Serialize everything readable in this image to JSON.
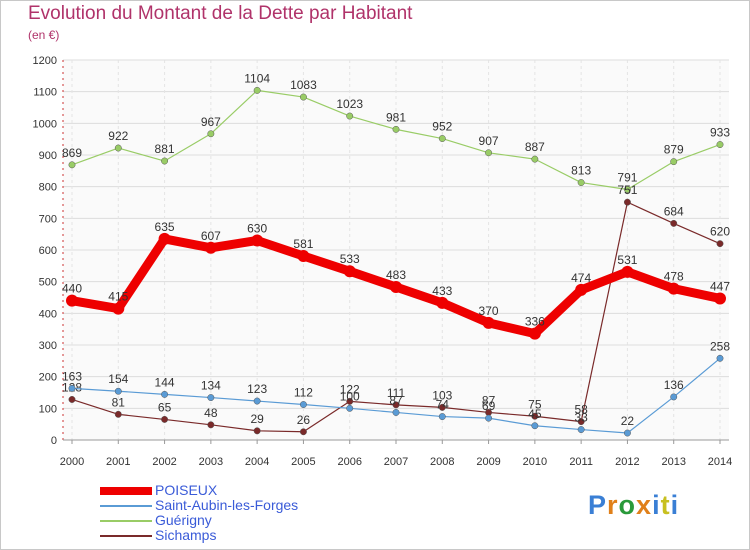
{
  "header": {
    "title": "Evolution du Montant de la Dette par Habitant",
    "subtitle": "(en €)"
  },
  "logo": {
    "text": "Proxiti",
    "colors": [
      "#3a7fd5",
      "#e0801a",
      "#2a9a3a",
      "#e0801a",
      "#3a7fd5",
      "#c8c020",
      "#3a7fd5"
    ]
  },
  "chart_data": {
    "type": "line",
    "title": "Evolution du Montant de la Dette par Habitant",
    "subtitle": "(en €)",
    "x": [
      2000,
      2001,
      2002,
      2003,
      2004,
      2005,
      2006,
      2007,
      2008,
      2009,
      2010,
      2011,
      2012,
      2013,
      2014
    ],
    "ylim": [
      0,
      1200
    ],
    "yticks": [
      0,
      100,
      200,
      300,
      400,
      500,
      600,
      700,
      800,
      900,
      1000,
      1100,
      1200
    ],
    "grid": true,
    "legend": "bottom-left",
    "series": [
      {
        "name": "POISEUX",
        "color": "#ee0000",
        "values": [
          440,
          415,
          635,
          607,
          630,
          581,
          533,
          483,
          433,
          370,
          336,
          474,
          531,
          478,
          447
        ]
      },
      {
        "name": "Saint-Aubin-les-Forges",
        "color": "#5a9bd5",
        "values": [
          163,
          154,
          144,
          134,
          123,
          112,
          100,
          87,
          74,
          69,
          45,
          33,
          22,
          136,
          258
        ]
      },
      {
        "name": "Guérigny",
        "color": "#99cc66",
        "values": [
          869,
          922,
          881,
          967,
          1104,
          1083,
          1023,
          981,
          952,
          907,
          887,
          813,
          791,
          879,
          933
        ]
      },
      {
        "name": "Sichamps",
        "color": "#7a2a2a",
        "values": [
          128,
          81,
          65,
          48,
          29,
          26,
          122,
          111,
          103,
          87,
          75,
          58,
          751,
          684,
          620
        ]
      }
    ]
  }
}
